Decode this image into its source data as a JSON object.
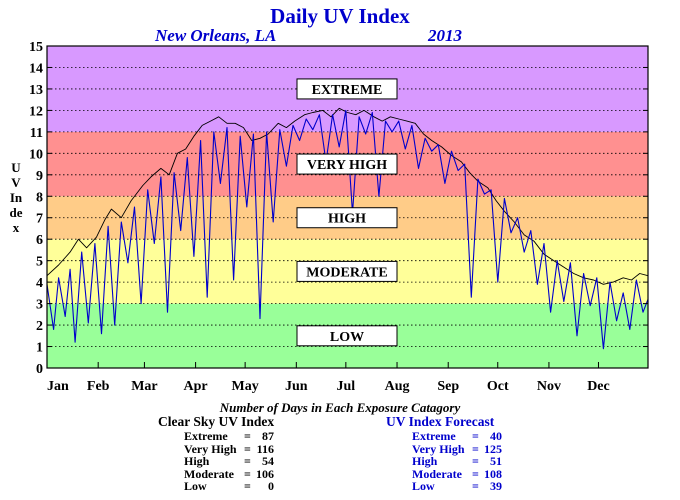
{
  "header": {
    "title": "Daily UV Index",
    "location": "New Orleans, LA",
    "year": "2013",
    "ylabel": "UV Index"
  },
  "chart_data": {
    "type": "line",
    "title": "Daily UV Index",
    "ylabel": "UV Index",
    "ylim": [
      0,
      15
    ],
    "yticks": [
      "0",
      "1",
      "2",
      "3",
      "4",
      "5",
      "6",
      "7",
      "8",
      "9",
      "10",
      "11",
      "12",
      "13",
      "14",
      "15"
    ],
    "xlim": [
      1,
      365
    ],
    "xticks": [
      "Jan",
      "Feb",
      "Mar",
      "Apr",
      "May",
      "Jun",
      "Jul",
      "Aug",
      "Sep",
      "Oct",
      "Nov",
      "Dec"
    ],
    "grid": true,
    "bands": [
      {
        "label": "LOW",
        "from": 0,
        "to": 3,
        "color": "#99ff99"
      },
      {
        "label": "MODERATE",
        "from": 3,
        "to": 6,
        "color": "#ffff99"
      },
      {
        "label": "HIGH",
        "from": 6,
        "to": 8,
        "color": "#ffcc88"
      },
      {
        "label": "VERY HIGH",
        "from": 8,
        "to": 11,
        "color": "#ff9090"
      },
      {
        "label": "EXTREME",
        "from": 11,
        "to": 15,
        "color": "#d899ff"
      }
    ],
    "series": [
      {
        "color": "#000000",
        "x": [
          1,
          8,
          15,
          20,
          25,
          31,
          36,
          40,
          46,
          52,
          59,
          64,
          70,
          75,
          80,
          85,
          90,
          95,
          100,
          105,
          110,
          115,
          120,
          125,
          130,
          135,
          141,
          146,
          151,
          157,
          162,
          168,
          173,
          178,
          183,
          188,
          193,
          199,
          204,
          209,
          214,
          219,
          224,
          229,
          234,
          240,
          246,
          252,
          257,
          262,
          268,
          273,
          278,
          284,
          290,
          296,
          302,
          308,
          314,
          320,
          326,
          332,
          338,
          344,
          350,
          355,
          360,
          365
        ],
        "y": [
          4.3,
          4.8,
          5.4,
          6.0,
          5.6,
          6.1,
          6.9,
          7.4,
          7.0,
          7.8,
          8.5,
          8.9,
          9.3,
          9.0,
          10.0,
          10.2,
          10.8,
          11.3,
          11.5,
          11.7,
          11.4,
          11.4,
          11.2,
          10.6,
          10.7,
          10.9,
          11.4,
          11.2,
          11.5,
          11.8,
          11.9,
          12.0,
          11.7,
          12.1,
          11.9,
          11.8,
          12.0,
          11.7,
          11.5,
          11.7,
          11.6,
          11.5,
          11.4,
          10.9,
          10.6,
          10.3,
          9.9,
          9.6,
          9.1,
          8.7,
          8.4,
          7.8,
          7.3,
          6.8,
          6.2,
          5.9,
          5.3,
          5.0,
          4.7,
          4.4,
          4.2,
          4.1,
          3.9,
          4.0,
          4.2,
          4.1,
          4.4,
          4.3
        ]
      },
      {
        "color": "#0000cc",
        "x": [
          1,
          5,
          8,
          12,
          15,
          18,
          22,
          26,
          30,
          34,
          38,
          42,
          46,
          50,
          54,
          58,
          62,
          66,
          70,
          74,
          78,
          82,
          86,
          90,
          94,
          98,
          102,
          106,
          110,
          114,
          118,
          122,
          126,
          130,
          134,
          138,
          142,
          146,
          150,
          154,
          158,
          162,
          166,
          170,
          174,
          178,
          182,
          186,
          190,
          194,
          198,
          202,
          206,
          210,
          214,
          218,
          222,
          226,
          230,
          234,
          238,
          242,
          246,
          250,
          254,
          258,
          262,
          266,
          270,
          274,
          278,
          282,
          286,
          290,
          294,
          298,
          302,
          306,
          310,
          314,
          318,
          322,
          326,
          330,
          334,
          338,
          342,
          346,
          350,
          354,
          358,
          362,
          365
        ],
        "y": [
          3.9,
          1.8,
          4.2,
          2.4,
          4.6,
          1.2,
          5.4,
          2.1,
          5.8,
          1.6,
          6.6,
          2.0,
          6.8,
          4.9,
          7.5,
          3.0,
          8.3,
          5.8,
          8.9,
          2.6,
          9.1,
          6.4,
          9.8,
          5.2,
          10.6,
          3.3,
          11.0,
          8.6,
          11.2,
          4.1,
          10.8,
          7.5,
          10.9,
          2.3,
          11.0,
          6.8,
          11.1,
          9.4,
          11.3,
          10.6,
          11.6,
          11.1,
          11.8,
          9.6,
          11.8,
          10.3,
          12.0,
          7.2,
          11.7,
          10.9,
          11.9,
          8.0,
          11.5,
          11.0,
          11.5,
          10.2,
          11.3,
          9.3,
          10.7,
          10.1,
          10.4,
          8.6,
          10.1,
          9.2,
          9.5,
          3.3,
          8.8,
          8.1,
          8.3,
          4.0,
          7.9,
          6.3,
          7.0,
          5.4,
          6.4,
          3.9,
          5.8,
          2.6,
          5.0,
          3.1,
          4.9,
          1.5,
          4.4,
          2.9,
          4.2,
          0.9,
          4.0,
          2.2,
          3.5,
          1.8,
          4.1,
          2.6,
          3.2
        ]
      }
    ]
  },
  "days_table": {
    "title": "Number of Days in Each Exposure Catagory",
    "clear_sky": {
      "heading": "Clear Sky UV Index",
      "rows": [
        {
          "label": "Extreme",
          "value": "87"
        },
        {
          "label": "Very High",
          "value": "116"
        },
        {
          "label": "High",
          "value": "54"
        },
        {
          "label": "Moderate",
          "value": "106"
        },
        {
          "label": "Low",
          "value": "0"
        }
      ]
    },
    "forecast": {
      "heading": "UV Index Forecast",
      "rows": [
        {
          "label": "Extreme",
          "value": "40"
        },
        {
          "label": "Very High",
          "value": "125"
        },
        {
          "label": "High",
          "value": "51"
        },
        {
          "label": "Moderate",
          "value": "108"
        },
        {
          "label": "Low",
          "value": "39"
        }
      ]
    }
  }
}
